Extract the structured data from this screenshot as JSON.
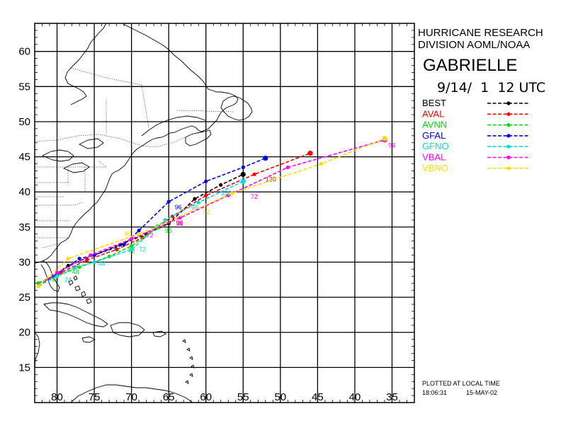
{
  "header": {
    "org_line1": "HURRICANE RESEARCH",
    "org_line2": "DIVISION AOML/NOAA",
    "storm_name": "GABRIELLE",
    "datetime": "9/14/  1  12 UTC"
  },
  "legend": [
    {
      "name": "BEST",
      "color": "#000000"
    },
    {
      "name": "AVAL",
      "color": "#ff0000"
    },
    {
      "name": "AVNN",
      "color": "#00dd00"
    },
    {
      "name": "GFAL",
      "color": "#0000ff"
    },
    {
      "name": "GFNO",
      "color": "#00dddd"
    },
    {
      "name": "VBAL",
      "color": "#ff00ff"
    },
    {
      "name": "VBNO",
      "color": "#ffdd00"
    }
  ],
  "footer": {
    "plotted_label": "PLOTTED AT LOCAL TIME",
    "time": "18:06:31",
    "date": "15-MAY-02"
  },
  "axes": {
    "lon_range_west": [
      83,
      32
    ],
    "lat_range": [
      10,
      64
    ],
    "lon_ticks": [
      "80",
      "75",
      "70",
      "65",
      "60",
      "55",
      "50",
      "45",
      "40",
      "35"
    ],
    "lat_ticks": [
      "15",
      "20",
      "25",
      "30",
      "35",
      "40",
      "45",
      "50",
      "55",
      "60"
    ]
  },
  "map_data": {
    "type": "track",
    "tracks": [
      {
        "name": "BEST",
        "points": [
          [
            82.5,
            27.0
          ],
          [
            80.5,
            28.0
          ],
          [
            78.5,
            29.5
          ],
          [
            75.0,
            31.0
          ],
          [
            71.5,
            32.5
          ],
          [
            68.0,
            34.0
          ],
          [
            65.0,
            35.5
          ],
          [
            61.5,
            39.0
          ],
          [
            58.0,
            41.0
          ],
          [
            55.0,
            42.5
          ]
        ]
      },
      {
        "name": "AVAL",
        "points": [
          [
            82.5,
            27.0
          ],
          [
            79.5,
            28.5
          ],
          [
            76.0,
            30.3
          ],
          [
            72.0,
            31.8
          ],
          [
            68.5,
            33.5
          ],
          [
            64.5,
            36.5
          ],
          [
            60.0,
            39.5
          ],
          [
            53.5,
            42.5
          ],
          [
            46.0,
            45.5
          ]
        ],
        "labels": [
          {
            "text": "96",
            "at": [
              64.0,
              35.3
            ]
          },
          {
            "text": "120",
            "at": [
              52.0,
              41.5
            ]
          }
        ]
      },
      {
        "name": "AVNN",
        "points": [
          [
            82.5,
            27.0
          ],
          [
            80.5,
            27.8
          ],
          [
            77.0,
            29.3
          ],
          [
            73.0,
            30.8
          ],
          [
            70.0,
            32.3
          ],
          [
            66.5,
            35.0
          ]
        ],
        "labels": [
          {
            "text": "24",
            "at": [
              80.7,
              27.3
            ]
          },
          {
            "text": "48",
            "at": [
              78.0,
              28.3
            ]
          },
          {
            "text": "72",
            "at": [
              70.5,
              31.3
            ]
          },
          {
            "text": "96",
            "at": [
              65.5,
              34.2
            ]
          }
        ]
      },
      {
        "name": "GFAL",
        "points": [
          [
            82.5,
            26.6
          ],
          [
            80.0,
            28.3
          ],
          [
            77.0,
            30.5
          ],
          [
            75.0,
            31.0
          ],
          [
            71.0,
            32.5
          ],
          [
            69.0,
            34.5
          ],
          [
            65.0,
            38.6
          ],
          [
            60.0,
            41.5
          ],
          [
            55.0,
            43.5
          ],
          [
            52.0,
            44.8
          ]
        ],
        "labels": [
          {
            "text": "96",
            "at": [
              64.2,
              37.5
            ]
          }
        ]
      },
      {
        "name": "GFNO",
        "points": [
          [
            82.5,
            26.6
          ],
          [
            80.0,
            28.0
          ],
          [
            77.5,
            29.3
          ],
          [
            75.0,
            30.0
          ],
          [
            70.0,
            31.8
          ],
          [
            65.5,
            36.0
          ],
          [
            61.0,
            38.5
          ],
          [
            55.0,
            41.5
          ]
        ],
        "labels": [
          {
            "text": "24",
            "at": [
              79.0,
              27.2
            ]
          },
          {
            "text": "48",
            "at": [
              74.5,
              29.5
            ]
          },
          {
            "text": "72",
            "at": [
              69.0,
              31.5
            ]
          },
          {
            "text": "96",
            "at": [
              62.0,
              37.5
            ]
          },
          {
            "text": "120",
            "at": [
              58.0,
              39.5
            ]
          }
        ]
      },
      {
        "name": "VBAL",
        "points": [
          [
            82.5,
            26.6
          ],
          [
            80.0,
            28.5
          ],
          [
            75.5,
            31.0
          ],
          [
            70.0,
            33.3
          ],
          [
            63.5,
            36.3
          ],
          [
            57.0,
            39.5
          ],
          [
            49.0,
            43.5
          ],
          [
            36.0,
            47.4
          ]
        ],
        "labels": [
          {
            "text": "72",
            "at": [
              68.0,
              33.5
            ]
          },
          {
            "text": "96",
            "at": [
              64.0,
              35.2
            ]
          },
          {
            "text": "72",
            "at": [
              54.0,
              39.0
            ]
          },
          {
            "text": "96",
            "at": [
              35.5,
              46.3
            ]
          }
        ]
      },
      {
        "name": "VBNO",
        "points": [
          [
            82.5,
            26.6
          ],
          [
            78.5,
            30.5
          ],
          [
            69.0,
            34.0
          ],
          [
            56.5,
            39.8
          ],
          [
            44.5,
            44.0
          ],
          [
            36.0,
            47.6
          ]
        ],
        "labels": [
          {
            "text": "48",
            "at": [
              71.0,
              33.8
            ]
          },
          {
            "text": "72",
            "at": [
              60.5,
              36.8
            ]
          }
        ]
      }
    ]
  }
}
